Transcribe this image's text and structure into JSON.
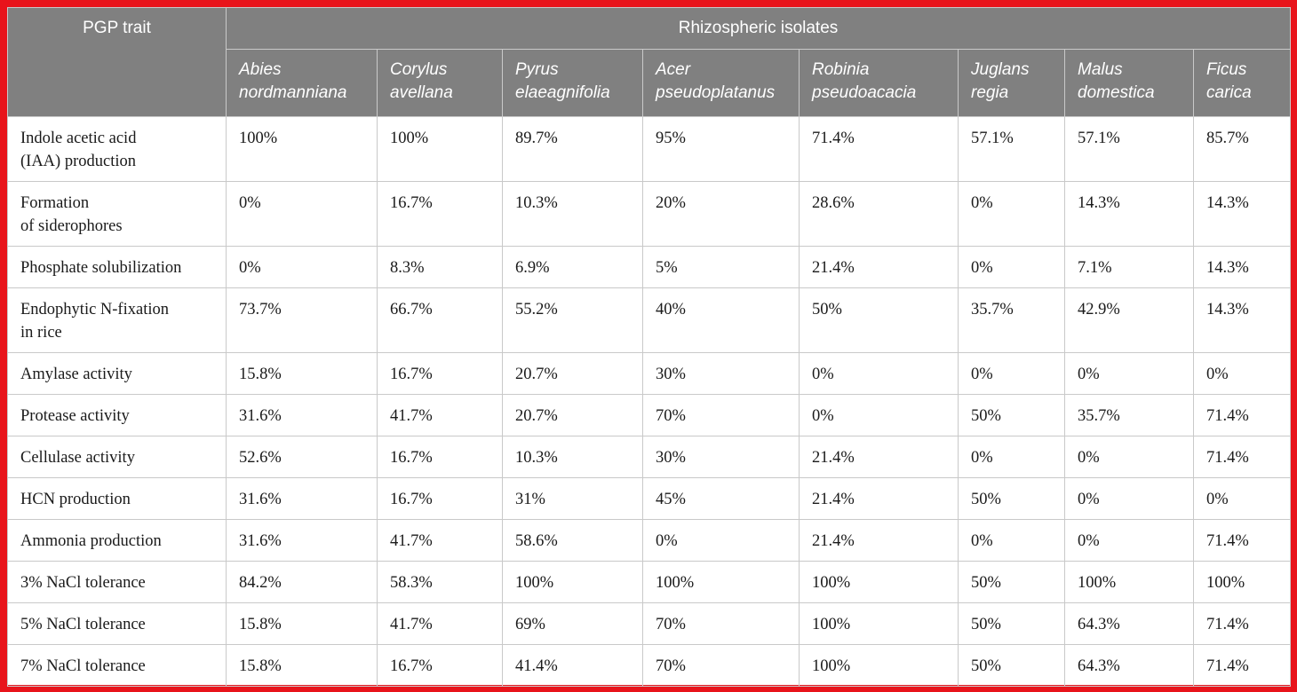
{
  "header": {
    "trait_label": "PGP trait",
    "group_label": "Rhizospheric isolates",
    "species": [
      [
        "Abies",
        "nordmanniana"
      ],
      [
        "Corylus",
        "avellana"
      ],
      [
        "Pyrus",
        "elaeagnifolia"
      ],
      [
        "Acer",
        "pseudoplatanus"
      ],
      [
        "Robinia",
        "pseudoacacia"
      ],
      [
        "Juglans",
        "regia"
      ],
      [
        "Malus",
        "domestica"
      ],
      [
        "Ficus",
        "carica"
      ]
    ]
  },
  "rows": [
    {
      "trait": [
        "Indole acetic acid",
        "(IAA) production"
      ],
      "values": [
        "100%",
        "100%",
        "89.7%",
        "95%",
        "71.4%",
        "57.1%",
        "57.1%",
        "85.7%"
      ]
    },
    {
      "trait": [
        "Formation",
        "of siderophores"
      ],
      "values": [
        "0%",
        "16.7%",
        "10.3%",
        "20%",
        "28.6%",
        "0%",
        "14.3%",
        "14.3%"
      ]
    },
    {
      "trait": [
        "Phosphate solubilization"
      ],
      "values": [
        "0%",
        "8.3%",
        "6.9%",
        "5%",
        "21.4%",
        "0%",
        "7.1%",
        "14.3%"
      ]
    },
    {
      "trait": [
        "Endophytic N-fixation",
        "in rice"
      ],
      "values": [
        "73.7%",
        "66.7%",
        "55.2%",
        "40%",
        "50%",
        "35.7%",
        "42.9%",
        "14.3%"
      ]
    },
    {
      "trait": [
        "Amylase activity"
      ],
      "values": [
        "15.8%",
        "16.7%",
        "20.7%",
        "30%",
        "0%",
        "0%",
        "0%",
        "0%"
      ]
    },
    {
      "trait": [
        "Protease activity"
      ],
      "values": [
        "31.6%",
        "41.7%",
        "20.7%",
        "70%",
        "0%",
        "50%",
        "35.7%",
        "71.4%"
      ]
    },
    {
      "trait": [
        "Cellulase activity"
      ],
      "values": [
        "52.6%",
        "16.7%",
        "10.3%",
        "30%",
        "21.4%",
        "0%",
        "0%",
        "71.4%"
      ]
    },
    {
      "trait": [
        "HCN production"
      ],
      "values": [
        "31.6%",
        "16.7%",
        "31%",
        "45%",
        "21.4%",
        "50%",
        "0%",
        "0%"
      ]
    },
    {
      "trait": [
        "Ammonia production"
      ],
      "values": [
        "31.6%",
        "41.7%",
        "58.6%",
        "0%",
        "21.4%",
        "0%",
        "0%",
        "71.4%"
      ]
    },
    {
      "trait": [
        "3% NaCl tolerance"
      ],
      "values": [
        "84.2%",
        "58.3%",
        "100%",
        "100%",
        "100%",
        "50%",
        "100%",
        "100%"
      ]
    },
    {
      "trait": [
        "5% NaCl tolerance"
      ],
      "values": [
        "15.8%",
        "41.7%",
        "69%",
        "70%",
        "100%",
        "50%",
        "64.3%",
        "71.4%"
      ]
    },
    {
      "trait": [
        "7% NaCl tolerance"
      ],
      "values": [
        "15.8%",
        "16.7%",
        "41.4%",
        "70%",
        "100%",
        "50%",
        "64.3%",
        "71.4%"
      ]
    }
  ]
}
